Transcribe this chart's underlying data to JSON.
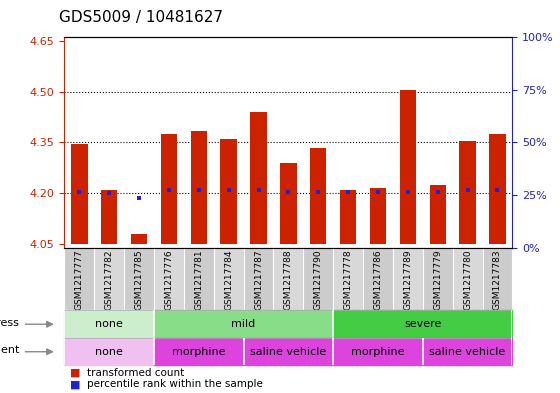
{
  "title": "GDS5009 / 10481627",
  "samples": [
    "GSM1217777",
    "GSM1217782",
    "GSM1217785",
    "GSM1217776",
    "GSM1217781",
    "GSM1217784",
    "GSM1217787",
    "GSM1217788",
    "GSM1217790",
    "GSM1217778",
    "GSM1217786",
    "GSM1217789",
    "GSM1217779",
    "GSM1217780",
    "GSM1217783"
  ],
  "transformed_counts": [
    4.345,
    4.21,
    4.08,
    4.375,
    4.385,
    4.36,
    4.44,
    4.29,
    4.335,
    4.21,
    4.215,
    4.505,
    4.225,
    4.355,
    4.375
  ],
  "percentile_values": [
    4.205,
    4.2,
    4.185,
    4.21,
    4.21,
    4.21,
    4.21,
    4.205,
    4.205,
    4.205,
    4.205,
    4.205,
    4.205,
    4.21,
    4.21
  ],
  "ylim": [
    4.04,
    4.66
  ],
  "yticks_left": [
    4.05,
    4.2,
    4.35,
    4.5,
    4.65
  ],
  "right_axis_ticks": [
    0,
    25,
    50,
    75,
    100
  ],
  "baseline": 4.05,
  "dotted_lines": [
    4.2,
    4.35,
    4.5
  ],
  "bar_color": "#cc2200",
  "percentile_color": "#2222cc",
  "stress_groups": [
    {
      "label": "none",
      "start": 0,
      "end": 3,
      "color": "#cceecc"
    },
    {
      "label": "mild",
      "start": 3,
      "end": 9,
      "color": "#88dd88"
    },
    {
      "label": "severe",
      "start": 9,
      "end": 15,
      "color": "#44cc44"
    }
  ],
  "agent_groups": [
    {
      "label": "none",
      "start": 0,
      "end": 3,
      "color": "#f0c0f0"
    },
    {
      "label": "morphine",
      "start": 3,
      "end": 6,
      "color": "#dd44dd"
    },
    {
      "label": "saline vehicle",
      "start": 6,
      "end": 9,
      "color": "#dd44dd"
    },
    {
      "label": "morphine",
      "start": 9,
      "end": 12,
      "color": "#dd44dd"
    },
    {
      "label": "saline vehicle",
      "start": 12,
      "end": 15,
      "color": "#dd44dd"
    }
  ],
  "stress_label": "stress",
  "agent_label": "agent",
  "legend_tc": "transformed count",
  "legend_pr": "percentile rank within the sample",
  "left_tick_color": "#cc2200",
  "right_tick_color": "#2222bb",
  "title_fontsize": 11,
  "bar_width": 0.55,
  "xlabel_fontsize": 6.5,
  "ylabel_fontsize": 8,
  "xtick_area_color": "#d8d8d8"
}
